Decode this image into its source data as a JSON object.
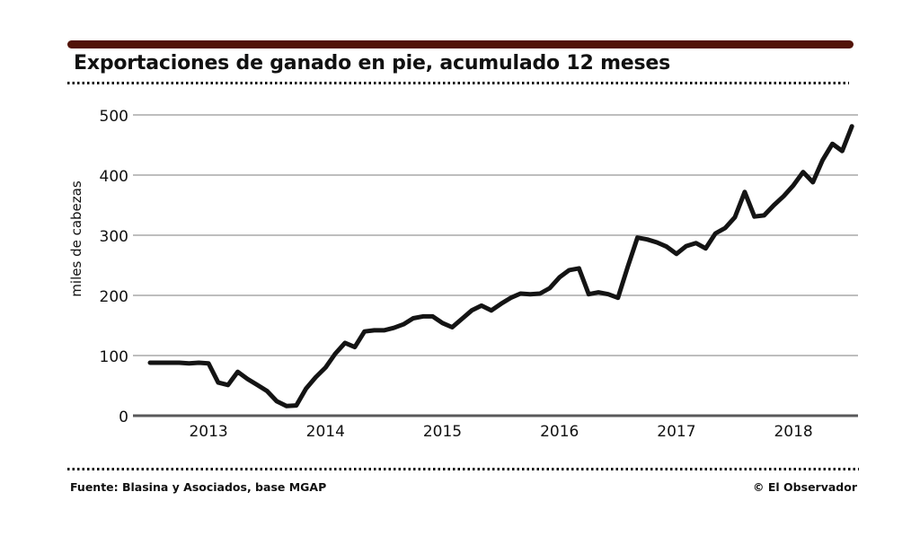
{
  "header": {
    "title": "Exportaciones de ganado en pie, acumulado 12 meses"
  },
  "footer": {
    "source": "Fuente: Blasina y Asociados, base MGAP",
    "credit": "© El Observador"
  },
  "colors": {
    "accent_bar": "#521408",
    "line": "#141414",
    "grid": "#a8a8a8",
    "axis": "#58585a",
    "text": "#111111"
  },
  "chart_data": {
    "type": "line",
    "title": "Exportaciones de ganado en pie, acumulado 12 meses",
    "xlabel": "",
    "ylabel": "miles de cabezas",
    "ylim": [
      0,
      500
    ],
    "yticks": [
      0,
      100,
      200,
      300,
      400,
      500
    ],
    "grid": "horizontal",
    "legend": "none",
    "x_interval": "monthly",
    "x_start": "2012-07",
    "year_labels": [
      "2013",
      "2014",
      "2015",
      "2016",
      "2017",
      "2018"
    ],
    "values": [
      88,
      88,
      88,
      88,
      87,
      88,
      87,
      55,
      51,
      73,
      61,
      51,
      41,
      24,
      16,
      17,
      45,
      64,
      80,
      103,
      121,
      114,
      140,
      142,
      142,
      146,
      152,
      162,
      165,
      165,
      154,
      147,
      161,
      175,
      183,
      175,
      186,
      196,
      203,
      202,
      203,
      212,
      230,
      242,
      245,
      202,
      205,
      202,
      196,
      247,
      296,
      293,
      288,
      281,
      269,
      282,
      287,
      278,
      303,
      312,
      330,
      372,
      331,
      333,
      350,
      365,
      383,
      405,
      388,
      425,
      452,
      440,
      481
    ]
  }
}
